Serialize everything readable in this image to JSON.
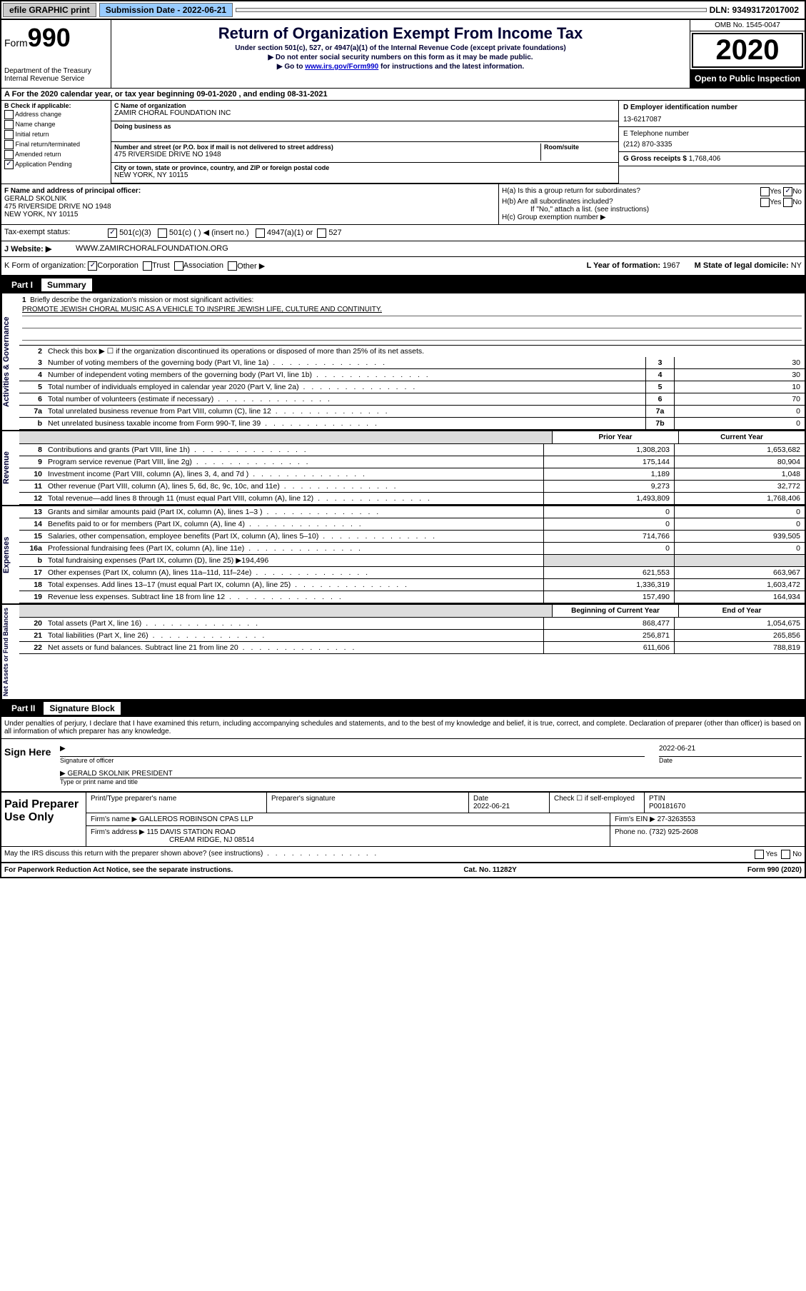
{
  "topbar": {
    "efile": "efile GRAPHIC print",
    "submission_label": "Submission Date - 2022-06-21",
    "dln": "DLN: 93493172017002"
  },
  "header": {
    "form_prefix": "Form",
    "form_number": "990",
    "dept": "Department of the Treasury\nInternal Revenue Service",
    "title": "Return of Organization Exempt From Income Tax",
    "subtitle": "Under section 501(c), 527, or 4947(a)(1) of the Internal Revenue Code (except private foundations)",
    "arrow1": "▶ Do not enter social security numbers on this form as it may be made public.",
    "arrow2_prefix": "▶ Go to ",
    "arrow2_link": "www.irs.gov/Form990",
    "arrow2_suffix": " for instructions and the latest information.",
    "omb": "OMB No. 1545-0047",
    "year": "2020",
    "open_inspect": "Open to Public Inspection"
  },
  "line_a": "For the 2020 calendar year, or tax year beginning 09-01-2020    , and ending 08-31-2021",
  "section_b": {
    "header": "B Check if applicable:",
    "opts": [
      "Address change",
      "Name change",
      "Initial return",
      "Final return/terminated",
      "Amended return",
      "Application Pending"
    ]
  },
  "section_c": {
    "name_label": "C Name of organization",
    "name": "ZAMIR CHORAL FOUNDATION INC",
    "dba_label": "Doing business as",
    "dba": "",
    "street_label": "Number and street (or P.O. box if mail is not delivered to street address)",
    "street": "475 RIVERSIDE DRIVE NO 1948",
    "room_label": "Room/suite",
    "city_label": "City or town, state or province, country, and ZIP or foreign postal code",
    "city": "NEW YORK, NY  10115"
  },
  "section_d": {
    "ein_label": "D Employer identification number",
    "ein": "13-6217087",
    "phone_label": "E Telephone number",
    "phone": "(212) 870-3335",
    "gross_label": "G Gross receipts $ ",
    "gross": "1,768,406"
  },
  "section_f": {
    "label": "F Name and address of principal officer:",
    "name": "GERALD SKOLNIK",
    "addr1": "475 RIVERSIDE DRIVE NO 1948",
    "addr2": "NEW YORK, NY  10115"
  },
  "section_h": {
    "ha": "H(a)  Is this a group return for subordinates?",
    "hb": "H(b)  Are all subordinates included?",
    "hb_note": "If \"No,\" attach a list. (see instructions)",
    "hc": "H(c)  Group exemption number ▶",
    "yes": "Yes",
    "no": "No"
  },
  "tax_exempt": {
    "label": "Tax-exempt status:",
    "c3": "501(c)(3)",
    "c_blank": "501(c) (  ) ◀ (insert no.)",
    "a1": "4947(a)(1) or",
    "s527": "527"
  },
  "row_j": {
    "label": "J   Website: ▶",
    "value": "WWW.ZAMIRCHORALFOUNDATION.ORG"
  },
  "row_k": {
    "label": "K Form of organization:",
    "corp": "Corporation",
    "trust": "Trust",
    "assoc": "Association",
    "other": "Other ▶",
    "l_label": "L Year of formation: ",
    "l_val": "1967",
    "m_label": "M State of legal domicile: ",
    "m_val": "NY"
  },
  "part1": {
    "label": "Part I",
    "title": "Summary"
  },
  "governance": {
    "side": "Activities & Governance",
    "line1_label": "Briefly describe the organization's mission or most significant activities:",
    "line1_text": "PROMOTE JEWISH CHORAL MUSIC AS A VEHICLE TO INSPIRE JEWISH LIFE, CULTURE AND CONTINUITY.",
    "line2": "Check this box ▶ ☐  if the organization discontinued its operations or disposed of more than 25% of its net assets.",
    "rows": [
      {
        "n": "3",
        "d": "Number of voting members of the governing body (Part VI, line 1a)",
        "box": "3",
        "v": "30"
      },
      {
        "n": "4",
        "d": "Number of independent voting members of the governing body (Part VI, line 1b)",
        "box": "4",
        "v": "30"
      },
      {
        "n": "5",
        "d": "Total number of individuals employed in calendar year 2020 (Part V, line 2a)",
        "box": "5",
        "v": "10"
      },
      {
        "n": "6",
        "d": "Total number of volunteers (estimate if necessary)",
        "box": "6",
        "v": "70"
      },
      {
        "n": "7a",
        "d": "Total unrelated business revenue from Part VIII, column (C), line 12",
        "box": "7a",
        "v": "0"
      },
      {
        "n": "b",
        "d": "Net unrelated business taxable income from Form 990-T, line 39",
        "box": "7b",
        "v": "0"
      }
    ]
  },
  "revenue": {
    "side": "Revenue",
    "col1": "Prior Year",
    "col2": "Current Year",
    "rows": [
      {
        "n": "8",
        "d": "Contributions and grants (Part VIII, line 1h)",
        "v1": "1,308,203",
        "v2": "1,653,682"
      },
      {
        "n": "9",
        "d": "Program service revenue (Part VIII, line 2g)",
        "v1": "175,144",
        "v2": "80,904"
      },
      {
        "n": "10",
        "d": "Investment income (Part VIII, column (A), lines 3, 4, and 7d )",
        "v1": "1,189",
        "v2": "1,048"
      },
      {
        "n": "11",
        "d": "Other revenue (Part VIII, column (A), lines 5, 6d, 8c, 9c, 10c, and 11e)",
        "v1": "9,273",
        "v2": "32,772"
      },
      {
        "n": "12",
        "d": "Total revenue—add lines 8 through 11 (must equal Part VIII, column (A), line 12)",
        "v1": "1,493,809",
        "v2": "1,768,406"
      }
    ]
  },
  "expenses": {
    "side": "Expenses",
    "rows": [
      {
        "n": "13",
        "d": "Grants and similar amounts paid (Part IX, column (A), lines 1–3 )",
        "v1": "0",
        "v2": "0"
      },
      {
        "n": "14",
        "d": "Benefits paid to or for members (Part IX, column (A), line 4)",
        "v1": "0",
        "v2": "0"
      },
      {
        "n": "15",
        "d": "Salaries, other compensation, employee benefits (Part IX, column (A), lines 5–10)",
        "v1": "714,766",
        "v2": "939,505"
      },
      {
        "n": "16a",
        "d": "Professional fundraising fees (Part IX, column (A), line 11e)",
        "v1": "0",
        "v2": "0"
      }
    ],
    "line_b": "Total fundraising expenses (Part IX, column (D), line 25) ▶194,496",
    "rows2": [
      {
        "n": "17",
        "d": "Other expenses (Part IX, column (A), lines 11a–11d, 11f–24e)",
        "v1": "621,553",
        "v2": "663,967"
      },
      {
        "n": "18",
        "d": "Total expenses. Add lines 13–17 (must equal Part IX, column (A), line 25)",
        "v1": "1,336,319",
        "v2": "1,603,472"
      },
      {
        "n": "19",
        "d": "Revenue less expenses. Subtract line 18 from line 12",
        "v1": "157,490",
        "v2": "164,934"
      }
    ]
  },
  "netassets": {
    "side": "Net Assets or Fund Balances",
    "col1": "Beginning of Current Year",
    "col2": "End of Year",
    "rows": [
      {
        "n": "20",
        "d": "Total assets (Part X, line 16)",
        "v1": "868,477",
        "v2": "1,054,675"
      },
      {
        "n": "21",
        "d": "Total liabilities (Part X, line 26)",
        "v1": "256,871",
        "v2": "265,856"
      },
      {
        "n": "22",
        "d": "Net assets or fund balances. Subtract line 21 from line 20",
        "v1": "611,606",
        "v2": "788,819"
      }
    ]
  },
  "part2": {
    "label": "Part II",
    "title": "Signature Block"
  },
  "penalty": "Under penalties of perjury, I declare that I have examined this return, including accompanying schedules and statements, and to the best of my knowledge and belief, it is true, correct, and complete. Declaration of preparer (other than officer) is based on all information of which preparer has any knowledge.",
  "sign": {
    "here": "Sign Here",
    "sig_label": "Signature of officer",
    "date_label": "Date",
    "date": "2022-06-21",
    "name": "GERALD SKOLNIK  PRESIDENT",
    "name_label": "Type or print name and title"
  },
  "preparer": {
    "title": "Paid Preparer Use Only",
    "print_label": "Print/Type preparer's name",
    "sig_label": "Preparer's signature",
    "date_label": "Date",
    "date": "2022-06-21",
    "check_label": "Check ☐ if self-employed",
    "ptin_label": "PTIN",
    "ptin": "P00181670",
    "firm_name_label": "Firm's name    ▶",
    "firm_name": "GALLEROS ROBINSON CPAS LLP",
    "firm_ein_label": "Firm's EIN ▶",
    "firm_ein": "27-3263553",
    "firm_addr_label": "Firm's address ▶",
    "firm_addr1": "115 DAVIS STATION ROAD",
    "firm_addr2": "CREAM RIDGE, NJ  08514",
    "phone_label": "Phone no. ",
    "phone": "(732) 925-2608"
  },
  "discuss": {
    "text": "May the IRS discuss this return with the preparer shown above? (see instructions)",
    "yes": "Yes",
    "no": "No"
  },
  "footer": {
    "left": "For Paperwork Reduction Act Notice, see the separate instructions.",
    "mid": "Cat. No. 11282Y",
    "right_prefix": "Form ",
    "right_form": "990",
    "right_suffix": " (2020)"
  }
}
